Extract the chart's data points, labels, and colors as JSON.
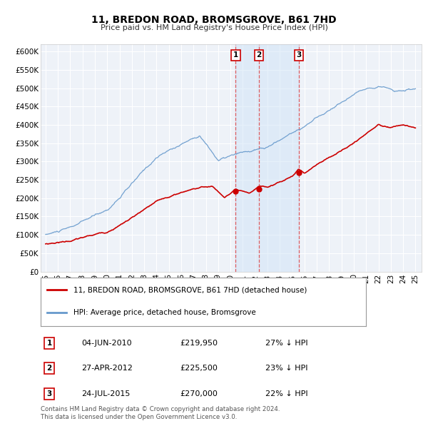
{
  "title": "11, BREDON ROAD, BROMSGROVE, B61 7HD",
  "subtitle": "Price paid vs. HM Land Registry's House Price Index (HPI)",
  "ylim": [
    0,
    620000
  ],
  "yticks": [
    0,
    50000,
    100000,
    150000,
    200000,
    250000,
    300000,
    350000,
    400000,
    450000,
    500000,
    550000,
    600000
  ],
  "ytick_labels": [
    "£0",
    "£50K",
    "£100K",
    "£150K",
    "£200K",
    "£250K",
    "£300K",
    "£350K",
    "£400K",
    "£450K",
    "£500K",
    "£550K",
    "£600K"
  ],
  "background_color": "#ffffff",
  "plot_bg_color": "#eef2f8",
  "grid_color": "#ffffff",
  "hpi_color": "#6699cc",
  "hpi_fill_color": "#dce8f5",
  "property_color": "#cc0000",
  "sale_marker_color": "#cc0000",
  "vline_color": "#dd4444",
  "shade_color": "#d0e4f7",
  "sales": [
    {
      "date_x": 2010.42,
      "price": 219950,
      "label": "1",
      "date_str": "04-JUN-2010",
      "price_str": "£219,950",
      "pct_str": "27% ↓ HPI"
    },
    {
      "date_x": 2012.32,
      "price": 225500,
      "label": "2",
      "date_str": "27-APR-2012",
      "price_str": "£225,500",
      "pct_str": "23% ↓ HPI"
    },
    {
      "date_x": 2015.56,
      "price": 270000,
      "label": "3",
      "date_str": "24-JUL-2015",
      "price_str": "£270,000",
      "pct_str": "22% ↓ HPI"
    }
  ],
  "legend_property": "11, BREDON ROAD, BROMSGROVE, B61 7HD (detached house)",
  "legend_hpi": "HPI: Average price, detached house, Bromsgrove",
  "footer_line1": "Contains HM Land Registry data © Crown copyright and database right 2024.",
  "footer_line2": "This data is licensed under the Open Government Licence v3.0.",
  "xlim_left": 1994.6,
  "xlim_right": 2025.5
}
